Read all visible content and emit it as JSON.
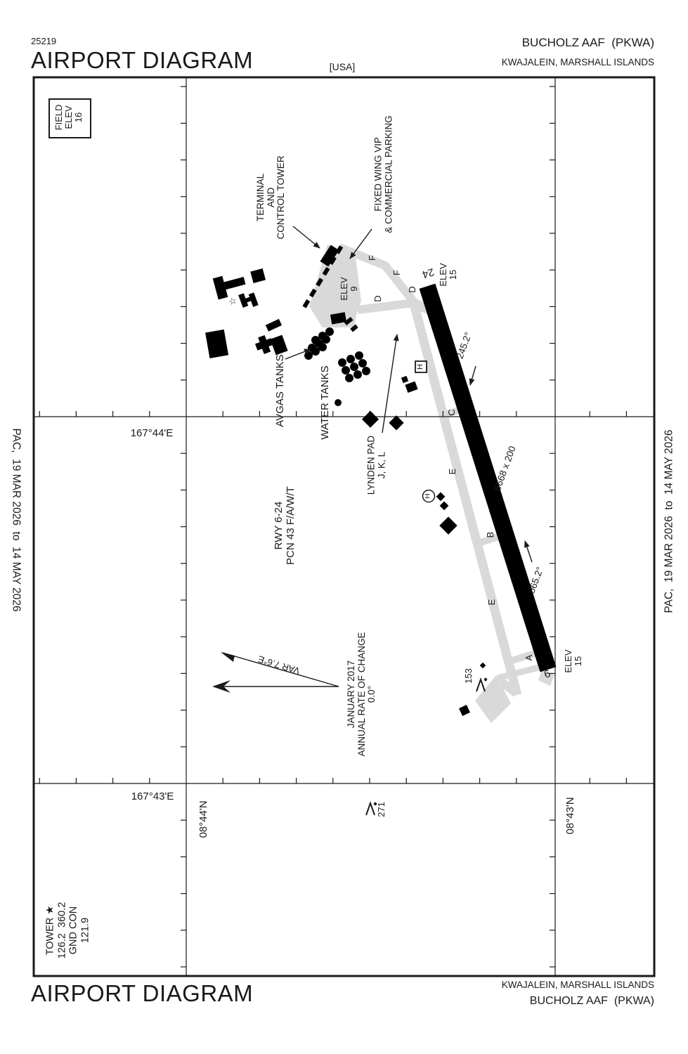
{
  "page": {
    "bg": "#ffffff",
    "ink": "#1a1a1a",
    "pavement_gray": "#d9d9d9"
  },
  "header": {
    "chart_number": "25219",
    "title": "AIRPORT DIAGRAM",
    "region_tag": "[USA]",
    "airport_name": "BUCHOLZ AAF  (PKWA)",
    "location": "KWAJALEIN, MARSHALL ISLANDS"
  },
  "footer": {
    "title": "AIRPORT DIAGRAM",
    "location": "KWAJALEIN, MARSHALL ISLANDS",
    "airport_name": "BUCHOLZ AAF  (PKWA)"
  },
  "margins": {
    "effective_dates": "PAC,  19 MAR 2026  to  14 MAY 2026"
  },
  "field_elev_box": {
    "lines": [
      "FIELD",
      "ELEV",
      "16"
    ]
  },
  "frequency_box": {
    "lines": [
      "TOWER ★",
      "126.2  360.2",
      "GND CON",
      "121.9"
    ]
  },
  "grid_labels": {
    "longitude_upper": "167°44'E",
    "longitude_lower": "167°43'E",
    "latitude_west": "08°44'N",
    "latitude_east": "08°43'N"
  },
  "runway": {
    "designator_24": "24",
    "designator_6": "6",
    "elevation_24": [
      "ELEV",
      "15"
    ],
    "elevation_6": [
      "ELEV",
      "15"
    ],
    "true_heading_24": "245.2°",
    "true_heading_6": "065.2°",
    "dimensions": "6668 x 200",
    "info": [
      "RWY 6-24",
      "PCN 43 F/A/W/T"
    ]
  },
  "apron": {
    "elevation": [
      "ELEV",
      "9"
    ]
  },
  "annotations": {
    "terminal": [
      "TERMINAL",
      "AND",
      "CONTROL TOWER"
    ],
    "fixed_wing": [
      "FIXED WING VIP",
      "& COMMERCIAL PARKING"
    ],
    "avgas_tanks": "AVGAS TANKS",
    "water_tanks": "WATER TANKS",
    "lynden_pad": [
      "LYNDEN PAD",
      "J, K, L"
    ],
    "magnetic_variation": "VAR 7.6°E",
    "rate_of_change": [
      "JANUARY 2017",
      "ANNUAL RATE OF CHANGE",
      "0.0°"
    ]
  },
  "taxiway_letters": {
    "f1": "F",
    "f2": "F",
    "d1": "D",
    "d2": "D",
    "c": "C",
    "e1": "E",
    "b": "B",
    "e2": "E",
    "a": "A"
  },
  "helipads": {
    "boxed_h": "H",
    "circled_h": "H"
  },
  "obstructions": {
    "tower_153": "153",
    "tower_271": "271"
  },
  "icons": {
    "beacon_star": "☆"
  }
}
